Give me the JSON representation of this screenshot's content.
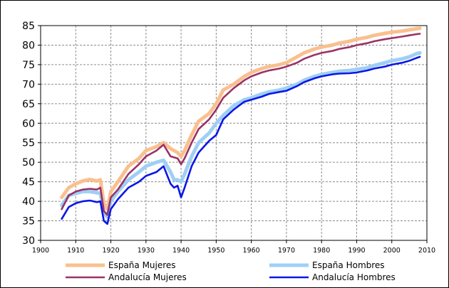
{
  "chart_data": {
    "type": "line",
    "title": "",
    "xlabel": "",
    "ylabel": "",
    "xlim": [
      1900,
      2010
    ],
    "ylim": [
      30,
      85
    ],
    "x_ticks": [
      "1900",
      "1910",
      "1920",
      "1930",
      "1940",
      "1950",
      "1960",
      "1970",
      "1980",
      "1990",
      "2000",
      "2010"
    ],
    "y_ticks": [
      "30",
      "35",
      "40",
      "45",
      "50",
      "55",
      "60",
      "65",
      "70",
      "75",
      "80",
      "85"
    ],
    "grid": true,
    "legend_position": "bottom",
    "series": [
      {
        "name": "España Mujeres",
        "color": "#f9c08f",
        "points": [
          [
            1906,
            41.0
          ],
          [
            1908,
            43.5
          ],
          [
            1910,
            44.5
          ],
          [
            1912,
            45.2
          ],
          [
            1914,
            45.6
          ],
          [
            1916,
            45.2
          ],
          [
            1917,
            45.5
          ],
          [
            1918,
            39.5
          ],
          [
            1919,
            38.0
          ],
          [
            1920,
            42.5
          ],
          [
            1922,
            45.0
          ],
          [
            1925,
            49.0
          ],
          [
            1928,
            51.0
          ],
          [
            1930,
            53.0
          ],
          [
            1933,
            54.0
          ],
          [
            1935,
            55.0
          ],
          [
            1937,
            53.5
          ],
          [
            1939,
            52.5
          ],
          [
            1940,
            51.5
          ],
          [
            1941,
            53.0
          ],
          [
            1943,
            57.0
          ],
          [
            1945,
            60.5
          ],
          [
            1948,
            62.5
          ],
          [
            1950,
            65.0
          ],
          [
            1952,
            68.5
          ],
          [
            1955,
            70.0
          ],
          [
            1958,
            72.0
          ],
          [
            1960,
            73.0
          ],
          [
            1963,
            74.0
          ],
          [
            1965,
            74.5
          ],
          [
            1968,
            75.0
          ],
          [
            1970,
            75.5
          ],
          [
            1973,
            77.0
          ],
          [
            1975,
            78.0
          ],
          [
            1978,
            79.0
          ],
          [
            1980,
            79.5
          ],
          [
            1983,
            80.0
          ],
          [
            1985,
            80.5
          ],
          [
            1988,
            81.0
          ],
          [
            1990,
            81.5
          ],
          [
            1993,
            82.0
          ],
          [
            1995,
            82.5
          ],
          [
            1998,
            83.0
          ],
          [
            2000,
            83.3
          ],
          [
            2003,
            83.6
          ],
          [
            2005,
            83.9
          ],
          [
            2007,
            84.2
          ],
          [
            2008,
            84.3
          ]
        ]
      },
      {
        "name": "España Hombres",
        "color": "#9fcff5",
        "points": [
          [
            1906,
            39.0
          ],
          [
            1908,
            41.5
          ],
          [
            1910,
            42.0
          ],
          [
            1912,
            42.5
          ],
          [
            1914,
            42.5
          ],
          [
            1916,
            42.2
          ],
          [
            1917,
            42.0
          ],
          [
            1918,
            37.0
          ],
          [
            1919,
            36.0
          ],
          [
            1920,
            40.0
          ],
          [
            1922,
            42.5
          ],
          [
            1925,
            45.5
          ],
          [
            1928,
            47.5
          ],
          [
            1930,
            49.0
          ],
          [
            1933,
            50.0
          ],
          [
            1935,
            50.5
          ],
          [
            1937,
            47.5
          ],
          [
            1938,
            45.5
          ],
          [
            1939,
            45.5
          ],
          [
            1940,
            45.0
          ],
          [
            1941,
            47.0
          ],
          [
            1943,
            51.5
          ],
          [
            1945,
            55.0
          ],
          [
            1948,
            57.5
          ],
          [
            1950,
            60.0
          ],
          [
            1952,
            62.0
          ],
          [
            1955,
            64.5
          ],
          [
            1958,
            66.0
          ],
          [
            1960,
            66.5
          ],
          [
            1963,
            67.5
          ],
          [
            1965,
            68.0
          ],
          [
            1968,
            68.5
          ],
          [
            1970,
            69.0
          ],
          [
            1973,
            70.0
          ],
          [
            1975,
            71.0
          ],
          [
            1978,
            72.0
          ],
          [
            1980,
            72.5
          ],
          [
            1983,
            73.0
          ],
          [
            1985,
            73.3
          ],
          [
            1988,
            73.5
          ],
          [
            1990,
            73.8
          ],
          [
            1993,
            74.2
          ],
          [
            1995,
            74.8
          ],
          [
            1998,
            75.5
          ],
          [
            2000,
            76.0
          ],
          [
            2003,
            76.5
          ],
          [
            2005,
            77.0
          ],
          [
            2007,
            77.8
          ],
          [
            2008,
            78.0
          ]
        ]
      },
      {
        "name": "Andalucía Mujeres",
        "color": "#993366",
        "points": [
          [
            1906,
            38.0
          ],
          [
            1908,
            41.5
          ],
          [
            1910,
            42.5
          ],
          [
            1912,
            43.0
          ],
          [
            1914,
            43.2
          ],
          [
            1916,
            43.0
          ],
          [
            1917,
            43.5
          ],
          [
            1918,
            37.5
          ],
          [
            1919,
            36.5
          ],
          [
            1920,
            41.0
          ],
          [
            1922,
            43.0
          ],
          [
            1925,
            47.0
          ],
          [
            1928,
            49.5
          ],
          [
            1930,
            51.5
          ],
          [
            1933,
            53.0
          ],
          [
            1935,
            54.5
          ],
          [
            1937,
            51.5
          ],
          [
            1939,
            51.0
          ],
          [
            1940,
            49.5
          ],
          [
            1941,
            51.0
          ],
          [
            1943,
            55.0
          ],
          [
            1945,
            58.5
          ],
          [
            1948,
            61.0
          ],
          [
            1950,
            63.5
          ],
          [
            1952,
            66.5
          ],
          [
            1955,
            69.0
          ],
          [
            1958,
            71.0
          ],
          [
            1960,
            72.0
          ],
          [
            1963,
            73.0
          ],
          [
            1965,
            73.5
          ],
          [
            1968,
            74.0
          ],
          [
            1970,
            74.5
          ],
          [
            1973,
            75.5
          ],
          [
            1975,
            76.5
          ],
          [
            1978,
            77.5
          ],
          [
            1980,
            78.0
          ],
          [
            1983,
            78.5
          ],
          [
            1985,
            79.0
          ],
          [
            1988,
            79.5
          ],
          [
            1990,
            80.0
          ],
          [
            1993,
            80.5
          ],
          [
            1995,
            81.0
          ],
          [
            1998,
            81.5
          ],
          [
            2000,
            81.8
          ],
          [
            2003,
            82.2
          ],
          [
            2005,
            82.5
          ],
          [
            2007,
            82.8
          ],
          [
            2008,
            82.9
          ]
        ]
      },
      {
        "name": "Andalucía Hombres",
        "color": "#0a17e6",
        "points": [
          [
            1906,
            35.5
          ],
          [
            1908,
            38.5
          ],
          [
            1910,
            39.5
          ],
          [
            1912,
            40.0
          ],
          [
            1914,
            40.2
          ],
          [
            1916,
            39.8
          ],
          [
            1917,
            40.0
          ],
          [
            1918,
            35.0
          ],
          [
            1919,
            34.2
          ],
          [
            1920,
            38.0
          ],
          [
            1922,
            40.5
          ],
          [
            1925,
            43.5
          ],
          [
            1928,
            45.0
          ],
          [
            1930,
            46.5
          ],
          [
            1933,
            47.5
          ],
          [
            1935,
            49.0
          ],
          [
            1937,
            44.5
          ],
          [
            1938,
            43.5
          ],
          [
            1939,
            44.0
          ],
          [
            1940,
            41.0
          ],
          [
            1941,
            43.5
          ],
          [
            1943,
            49.0
          ],
          [
            1945,
            52.5
          ],
          [
            1948,
            55.5
          ],
          [
            1950,
            57.0
          ],
          [
            1952,
            61.0
          ],
          [
            1955,
            63.5
          ],
          [
            1958,
            65.5
          ],
          [
            1960,
            66.0
          ],
          [
            1963,
            66.8
          ],
          [
            1965,
            67.5
          ],
          [
            1968,
            68.0
          ],
          [
            1970,
            68.3
          ],
          [
            1973,
            69.5
          ],
          [
            1975,
            70.5
          ],
          [
            1978,
            71.5
          ],
          [
            1980,
            72.0
          ],
          [
            1983,
            72.5
          ],
          [
            1985,
            72.7
          ],
          [
            1988,
            72.8
          ],
          [
            1990,
            73.0
          ],
          [
            1993,
            73.5
          ],
          [
            1995,
            74.0
          ],
          [
            1998,
            74.5
          ],
          [
            2000,
            75.0
          ],
          [
            2003,
            75.5
          ],
          [
            2005,
            76.0
          ],
          [
            2007,
            76.7
          ],
          [
            2008,
            77.0
          ]
        ]
      }
    ]
  }
}
